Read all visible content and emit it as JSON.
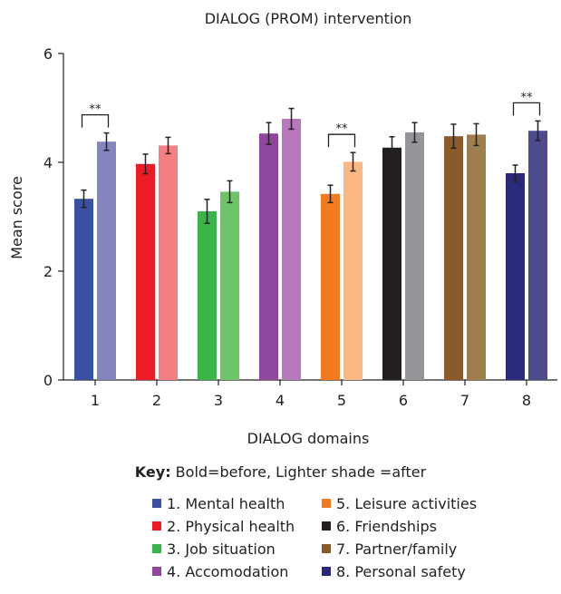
{
  "chart_data": {
    "type": "bar",
    "title": "DIALOG (PROM) intervention",
    "xlabel": "DIALOG domains",
    "ylabel": "Mean score",
    "ylim": [
      0,
      6
    ],
    "yticks": [
      "0",
      "2",
      "4",
      "6"
    ],
    "categories": [
      "1",
      "2",
      "3",
      "4",
      "5",
      "6",
      "7",
      "8"
    ],
    "series": [
      {
        "values": [
          3.33,
          3.97,
          3.1,
          4.53,
          3.42,
          4.27,
          4.48,
          3.8
        ],
        "errors": [
          0.16,
          0.18,
          0.22,
          0.2,
          0.16,
          0.2,
          0.22,
          0.15
        ]
      },
      {
        "values": [
          4.38,
          4.31,
          3.46,
          4.8,
          4.01,
          4.55,
          4.51,
          4.58
        ],
        "errors": [
          0.16,
          0.15,
          0.2,
          0.19,
          0.17,
          0.18,
          0.2,
          0.18
        ]
      }
    ],
    "bold_colors": [
      "#3a51a3",
      "#ed1c24",
      "#39b54a",
      "#8e479c",
      "#f47a20",
      "#231f20",
      "#8b5a2b",
      "#2b2a7a"
    ],
    "light_colors": [
      "#8484c0",
      "#f58082",
      "#6fc46a",
      "#b779bb",
      "#fbb882",
      "#939598",
      "#a07f4e",
      "#4d4b8c"
    ],
    "significance": [
      {
        "category_index": 0,
        "label": "**"
      },
      {
        "category_index": 4,
        "label": "**"
      },
      {
        "category_index": 7,
        "label": "**"
      }
    ],
    "key": {
      "bold_label": "Key:",
      "text": " Bold=before, Lighter shade =after"
    },
    "legend": [
      {
        "label": "1. Mental health",
        "color": "#3a51a3"
      },
      {
        "label": "2. Physical health",
        "color": "#ed1c24"
      },
      {
        "label": "3. Job situation",
        "color": "#39b54a"
      },
      {
        "label": "4. Accomodation",
        "color": "#8e479c"
      },
      {
        "label": "5. Leisure activities",
        "color": "#f47a20"
      },
      {
        "label": "6. Friendships",
        "color": "#231f20"
      },
      {
        "label": "7. Partner/family",
        "color": "#8b5a2b"
      },
      {
        "label": "8. Personal safety",
        "color": "#2b2a7a"
      }
    ],
    "legend_placement": "bottom",
    "grid": false
  }
}
